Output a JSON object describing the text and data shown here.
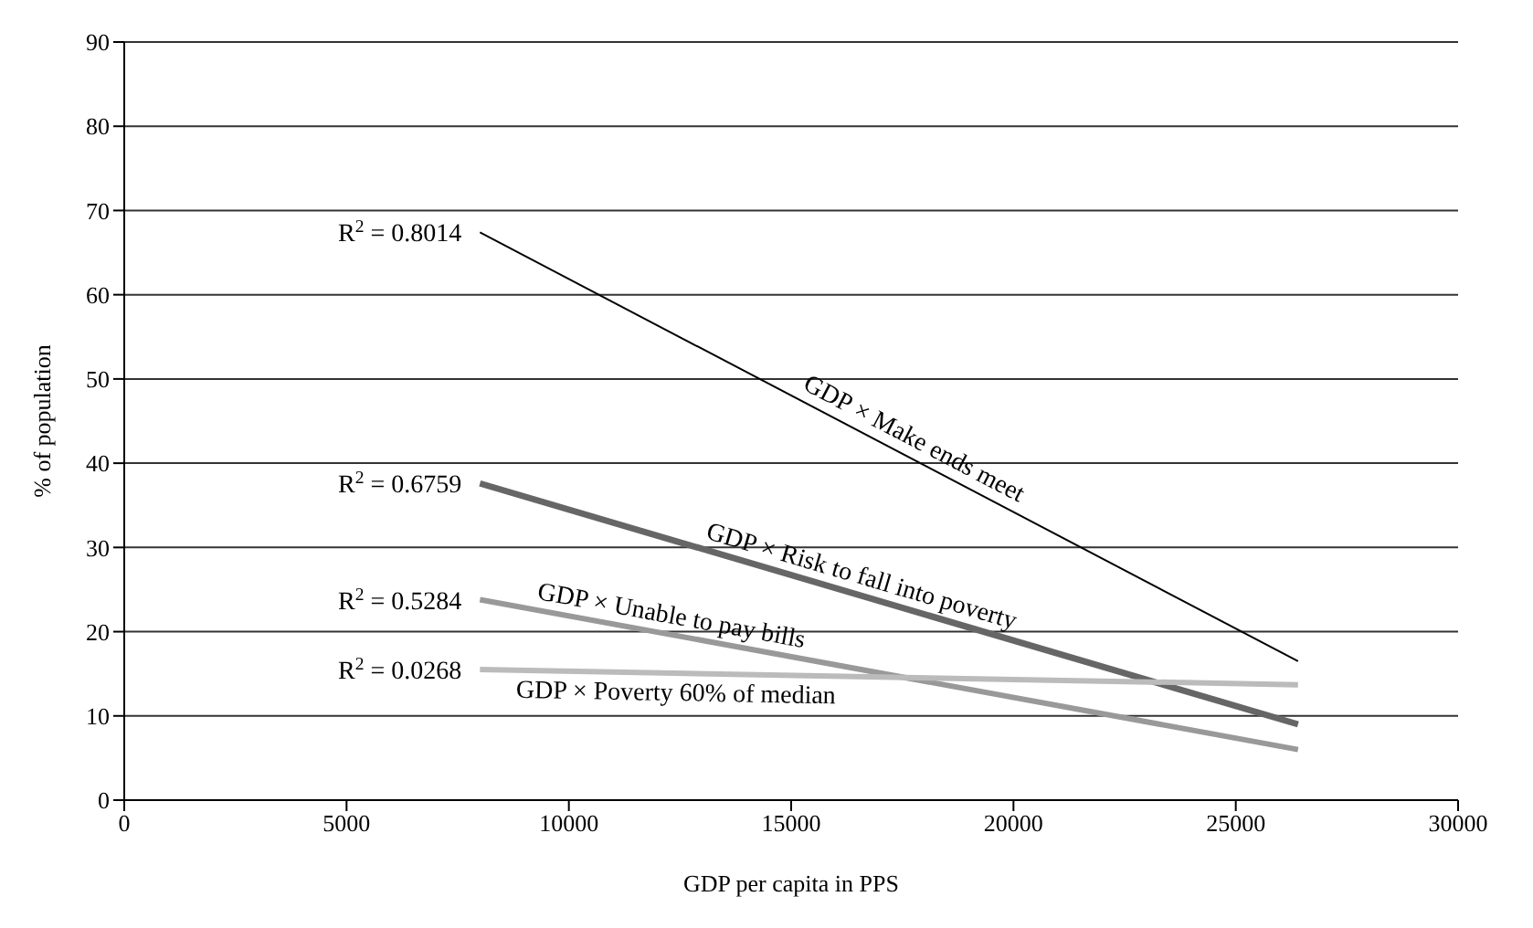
{
  "chart_data": {
    "type": "line",
    "xlabel": "GDP per capita in PPS",
    "ylabel": "% of population",
    "xlim": [
      0,
      30000
    ],
    "xticks": [
      0,
      5000,
      10000,
      15000,
      20000,
      25000,
      30000
    ],
    "ylim": [
      0,
      90
    ],
    "yticks": [
      0,
      10,
      20,
      30,
      40,
      50,
      60,
      70,
      80,
      90
    ],
    "grid": "y",
    "legend": false,
    "marker": "none",
    "line_style": "solid",
    "x": [
      8000,
      26400
    ],
    "series": [
      {
        "name": "GDP × Make ends meet",
        "color": "#000000",
        "values": [
          67.4,
          16.5
        ]
      },
      {
        "name": "GDP × Risk to fall into poverty",
        "color": "#666666",
        "values": [
          37.6,
          9
        ]
      },
      {
        "name": "GDP × Unable to pay bills",
        "color": "#999999",
        "values": [
          23.8,
          6
        ]
      },
      {
        "name": "GDP × Poverty 60% of median",
        "color": "#bbbbbb",
        "values": [
          15.5,
          13.7
        ]
      }
    ],
    "annotations": [
      "R$^{2}$ = 0.8014",
      "R$^{2}$ = 0.6759",
      "R$^{2}$ = 0.5284",
      "R$^{2}$ = 0.0268"
    ]
  }
}
